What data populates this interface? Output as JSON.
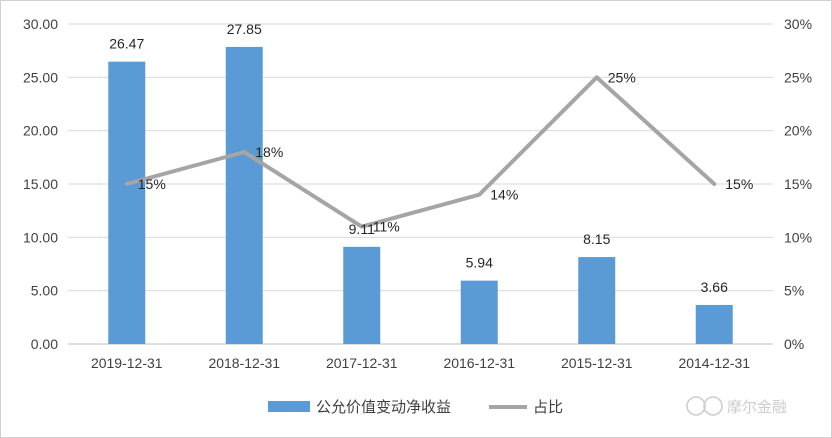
{
  "chart_data": {
    "type": "bar",
    "categories": [
      "2019-12-31",
      "2018-12-31",
      "2017-12-31",
      "2016-12-31",
      "2015-12-31",
      "2014-12-31"
    ],
    "series": [
      {
        "name": "公允价值变动净收益",
        "type": "bar",
        "axis": "left",
        "values": [
          26.47,
          27.85,
          9.11,
          5.94,
          8.15,
          3.66
        ],
        "labels": [
          "26.47",
          "27.85",
          "9.11",
          "5.94",
          "8.15",
          "3.66"
        ],
        "color": "#5b9bd5"
      },
      {
        "name": "占比",
        "type": "line",
        "axis": "right",
        "values": [
          15,
          18,
          11,
          14,
          25,
          15
        ],
        "labels": [
          "15%",
          "18%",
          "11%",
          "14%",
          "25%",
          "15%"
        ],
        "color": "#a5a5a5"
      }
    ],
    "y_left": {
      "range": [
        0,
        30
      ],
      "ticks": [
        "0.00",
        "5.00",
        "10.00",
        "15.00",
        "20.00",
        "25.00",
        "30.00"
      ]
    },
    "y_right": {
      "range": [
        0,
        30
      ],
      "ticks": [
        "0%",
        "5%",
        "10%",
        "15%",
        "20%",
        "25%",
        "30%"
      ]
    },
    "grid": true,
    "legend_position": "bottom",
    "title": "",
    "xlabel": "",
    "ylabel": ""
  },
  "watermark": {
    "text": "摩尔金融",
    "icon": "mole-logo-icon"
  }
}
